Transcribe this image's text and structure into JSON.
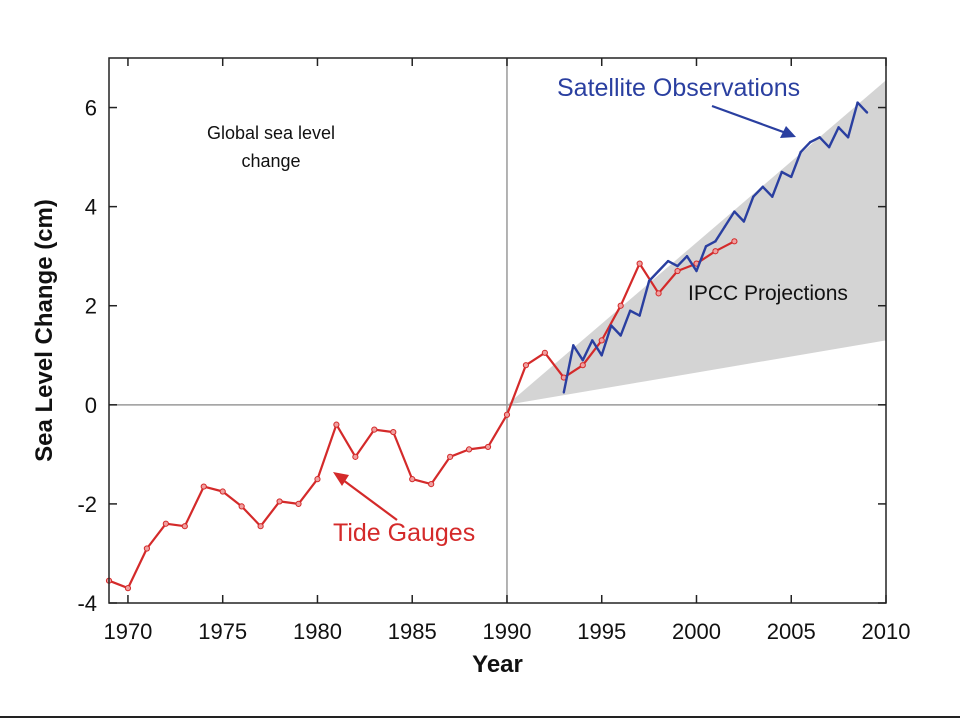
{
  "chart_data": {
    "type": "line",
    "annotation": "Global sea level change",
    "xlabel": "Year",
    "ylabel": "Sea Level Change (cm)",
    "xlim": [
      1969,
      2010
    ],
    "ylim": [
      -4,
      7
    ],
    "x_ticks": [
      1970,
      1975,
      1980,
      1985,
      1990,
      1995,
      2000,
      2005,
      2010
    ],
    "y_ticks": [
      -4,
      -2,
      0,
      2,
      4,
      6
    ],
    "grid": false,
    "reference_lines": {
      "horizontal_y": 0,
      "vertical_x": 1990
    },
    "series": [
      {
        "name": "Tide Gauges",
        "color": "#d42a2a",
        "x": [
          1969,
          1970,
          1971,
          1972,
          1973,
          1974,
          1975,
          1976,
          1977,
          1978,
          1979,
          1980,
          1981,
          1982,
          1983,
          1984,
          1985,
          1986,
          1987,
          1988,
          1989,
          1990,
          1991,
          1992,
          1993,
          1994,
          1995,
          1996,
          1997,
          1998,
          1999,
          2000,
          2001,
          2002
        ],
        "values": [
          -3.55,
          -3.7,
          -2.9,
          -2.4,
          -2.45,
          -1.65,
          -1.75,
          -2.05,
          -2.45,
          -1.95,
          -2.0,
          -1.5,
          -0.4,
          -1.05,
          -0.5,
          -0.55,
          -1.5,
          -1.6,
          -1.05,
          -0.9,
          -0.85,
          -0.2,
          0.8,
          1.05,
          0.55,
          0.8,
          1.3,
          2.0,
          2.85,
          2.25,
          2.7,
          2.85,
          3.1,
          3.3
        ]
      },
      {
        "name": "Satellite Observations",
        "color": "#2a3fa0",
        "x": [
          1993.0,
          1993.5,
          1994.0,
          1994.5,
          1995.0,
          1995.5,
          1996.0,
          1996.5,
          1997.0,
          1997.5,
          1998.0,
          1998.5,
          1999.0,
          1999.5,
          2000.0,
          2000.5,
          2001.0,
          2001.5,
          2002.0,
          2002.5,
          2003.0,
          2003.5,
          2004.0,
          2004.5,
          2005.0,
          2005.5,
          2006.0,
          2006.5,
          2007.0,
          2007.5,
          2008.0,
          2008.5,
          2009.0
        ],
        "values": [
          0.25,
          1.2,
          0.9,
          1.3,
          1.0,
          1.6,
          1.4,
          1.9,
          1.8,
          2.5,
          2.7,
          2.9,
          2.8,
          3.0,
          2.7,
          3.2,
          3.3,
          3.6,
          3.9,
          3.7,
          4.2,
          4.4,
          4.2,
          4.7,
          4.6,
          5.1,
          5.3,
          5.4,
          5.2,
          5.6,
          5.4,
          6.1,
          5.9
        ]
      }
    ],
    "projection_band": {
      "name": "IPCC Projections",
      "color": "#d4d4d4",
      "x": [
        1990,
        2010
      ],
      "lower": [
        0,
        1.3
      ],
      "upper": [
        0,
        6.55
      ]
    },
    "labels": {
      "satellite": "Satellite Observations",
      "tide": "Tide Gauges",
      "band": "IPCC Projections"
    }
  }
}
